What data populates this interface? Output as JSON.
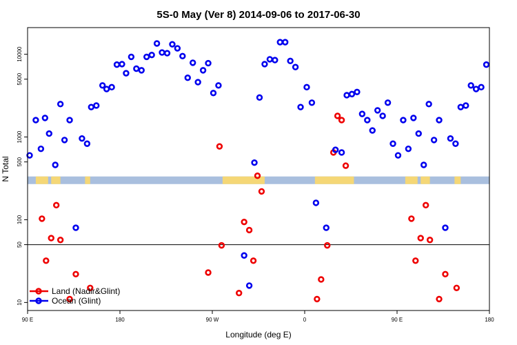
{
  "chart_data": {
    "type": "scatter",
    "title": "5S-0 May (Ver 8)   2014-09-06 to 2017-06-30",
    "xlabel": "Longitude (deg E)",
    "ylabel": "N Total",
    "x_axis": {
      "range_deg": [
        90,
        450
      ],
      "ticks": [
        {
          "x": 90,
          "label": "90 E"
        },
        {
          "x": 180,
          "label": "180"
        },
        {
          "x": 270,
          "label": "90 W"
        },
        {
          "x": 360,
          "label": "0"
        },
        {
          "x": 450,
          "label": "90 E"
        },
        {
          "x": 540,
          "label": "180"
        }
      ],
      "range": [
        90,
        540
      ]
    },
    "y_axis": {
      "scale": "log",
      "ticks": [
        10,
        50,
        100,
        500,
        1000,
        5000,
        10000
      ],
      "range": [
        8,
        21000
      ]
    },
    "reference_line_y": 50,
    "land_band": {
      "y_center": 300,
      "color": "#a9bfde",
      "land_color": "#f5d776",
      "land_segments": [
        [
          98,
          110
        ],
        [
          113,
          122
        ],
        [
          146,
          151
        ],
        [
          280,
          321
        ],
        [
          370,
          408
        ],
        [
          458,
          470
        ],
        [
          473,
          482
        ],
        [
          506,
          512
        ]
      ]
    },
    "legend": {
      "position": "bottom-left",
      "entries": [
        {
          "label": "Land (Nadir&Glint)",
          "color": "#ee0000"
        },
        {
          "label": "Ocean (Glint)",
          "color": "#0000ee"
        }
      ]
    },
    "series": [
      {
        "name": "Land (Nadir&Glint)",
        "color": "#ee0000",
        "points": [
          [
            104,
            103
          ],
          [
            108,
            32
          ],
          [
            113,
            60
          ],
          [
            118,
            150
          ],
          [
            122,
            57
          ],
          [
            131,
            11
          ],
          [
            137,
            22
          ],
          [
            151,
            15
          ],
          [
            266,
            23
          ],
          [
            277,
            770
          ],
          [
            279,
            49
          ],
          [
            296,
            13
          ],
          [
            301,
            94
          ],
          [
            306,
            75
          ],
          [
            310,
            32
          ],
          [
            314,
            340
          ],
          [
            318,
            220
          ],
          [
            372,
            11
          ],
          [
            376,
            19
          ],
          [
            382,
            49
          ],
          [
            388,
            650
          ],
          [
            392,
            1800
          ],
          [
            396,
            1600
          ],
          [
            400,
            450
          ],
          [
            464,
            103
          ],
          [
            468,
            32
          ],
          [
            473,
            60
          ],
          [
            478,
            150
          ],
          [
            482,
            57
          ],
          [
            491,
            11
          ],
          [
            497,
            22
          ],
          [
            508,
            15
          ]
        ]
      },
      {
        "name": "Ocean (Glint)",
        "color": "#0000ee",
        "points": [
          [
            92,
            600
          ],
          [
            98,
            1600
          ],
          [
            103,
            720
          ],
          [
            107,
            1700
          ],
          [
            111,
            1100
          ],
          [
            117,
            460
          ],
          [
            122,
            2500
          ],
          [
            126,
            920
          ],
          [
            131,
            1600
          ],
          [
            137,
            80
          ],
          [
            143,
            960
          ],
          [
            148,
            830
          ],
          [
            152,
            2300
          ],
          [
            157,
            2400
          ],
          [
            163,
            4200
          ],
          [
            167,
            3800
          ],
          [
            172,
            4000
          ],
          [
            177,
            7500
          ],
          [
            182,
            7600
          ],
          [
            186,
            5900
          ],
          [
            191,
            9300
          ],
          [
            196,
            6700
          ],
          [
            201,
            6400
          ],
          [
            206,
            9300
          ],
          [
            211,
            9800
          ],
          [
            216,
            13500
          ],
          [
            221,
            10500
          ],
          [
            226,
            10300
          ],
          [
            231,
            13200
          ],
          [
            236,
            11800
          ],
          [
            241,
            9500
          ],
          [
            246,
            5200
          ],
          [
            251,
            7900
          ],
          [
            256,
            4600
          ],
          [
            261,
            6400
          ],
          [
            266,
            7800
          ],
          [
            271,
            3400
          ],
          [
            276,
            4200
          ],
          [
            301,
            37
          ],
          [
            306,
            16
          ],
          [
            311,
            490
          ],
          [
            316,
            3000
          ],
          [
            321,
            7600
          ],
          [
            326,
            8700
          ],
          [
            331,
            8500
          ],
          [
            336,
            14000
          ],
          [
            341,
            14000
          ],
          [
            346,
            8300
          ],
          [
            351,
            7000
          ],
          [
            356,
            2300
          ],
          [
            362,
            4000
          ],
          [
            367,
            2600
          ],
          [
            371,
            160
          ],
          [
            381,
            80
          ],
          [
            390,
            700
          ],
          [
            396,
            650
          ],
          [
            401,
            3200
          ],
          [
            406,
            3300
          ],
          [
            411,
            3500
          ],
          [
            416,
            1900
          ],
          [
            421,
            1600
          ],
          [
            426,
            1200
          ],
          [
            431,
            2100
          ],
          [
            436,
            1800
          ],
          [
            441,
            2600
          ],
          [
            446,
            830
          ],
          [
            451,
            600
          ],
          [
            456,
            1600
          ],
          [
            461,
            720
          ],
          [
            466,
            1700
          ],
          [
            471,
            1100
          ],
          [
            476,
            460
          ],
          [
            481,
            2500
          ],
          [
            486,
            920
          ],
          [
            491,
            1600
          ],
          [
            497,
            80
          ],
          [
            502,
            960
          ],
          [
            507,
            830
          ],
          [
            512,
            2300
          ],
          [
            517,
            2400
          ],
          [
            522,
            4200
          ],
          [
            527,
            3800
          ],
          [
            532,
            4000
          ],
          [
            537,
            7500
          ]
        ]
      }
    ]
  }
}
